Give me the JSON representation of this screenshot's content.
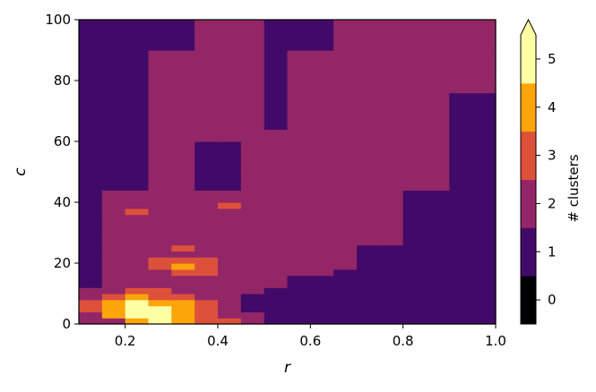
{
  "chart_data": {
    "type": "heatmap",
    "title": "",
    "xlabel": "r",
    "ylabel": "c",
    "xlim": [
      0.1,
      1.0
    ],
    "ylim": [
      0,
      100
    ],
    "xticks": [
      "0.2",
      "0.4",
      "0.6",
      "0.8",
      "1.0"
    ],
    "yticks": [
      "0",
      "20",
      "40",
      "60",
      "80",
      "100"
    ],
    "x_edges": [
      0.1,
      0.15,
      0.2,
      0.25,
      0.3,
      0.35,
      0.4,
      0.45,
      0.5,
      0.55,
      0.6,
      0.65,
      0.7,
      0.75,
      0.8,
      0.85,
      0.9,
      0.95,
      1.0
    ],
    "y_edges": [
      0,
      2,
      4,
      6,
      8,
      10,
      12,
      16,
      18,
      20,
      22,
      24,
      26,
      30,
      34,
      36,
      38,
      40,
      44,
      48,
      52,
      56,
      60,
      64,
      68,
      72,
      76,
      80,
      84,
      88,
      90,
      92,
      96,
      100
    ],
    "z": [
      [
        2,
        2,
        4,
        5,
        4,
        3,
        3,
        2,
        1,
        1,
        1,
        1,
        1,
        1,
        1,
        1,
        1,
        1
      ],
      [
        2,
        4,
        5,
        5,
        4,
        3,
        2,
        2,
        1,
        1,
        1,
        1,
        1,
        1,
        1,
        1,
        1,
        1
      ],
      [
        3,
        4,
        5,
        5,
        4,
        3,
        2,
        1,
        1,
        1,
        1,
        1,
        1,
        1,
        1,
        1,
        1,
        1
      ],
      [
        3,
        4,
        5,
        4,
        4,
        3,
        2,
        1,
        1,
        1,
        1,
        1,
        1,
        1,
        1,
        1,
        1,
        1
      ],
      [
        2,
        3,
        4,
        3,
        3,
        2,
        2,
        1,
        1,
        1,
        1,
        1,
        1,
        1,
        1,
        1,
        1,
        1
      ],
      [
        2,
        2,
        3,
        3,
        2,
        2,
        2,
        2,
        1,
        1,
        1,
        1,
        1,
        1,
        1,
        1,
        1,
        1
      ],
      [
        1,
        2,
        2,
        2,
        2,
        2,
        2,
        2,
        2,
        1,
        1,
        1,
        1,
        1,
        1,
        1,
        1,
        1
      ],
      [
        1,
        2,
        2,
        2,
        3,
        3,
        2,
        2,
        2,
        2,
        2,
        1,
        1,
        1,
        1,
        1,
        1,
        1
      ],
      [
        1,
        2,
        2,
        3,
        4,
        3,
        2,
        2,
        2,
        2,
        2,
        2,
        1,
        1,
        1,
        1,
        1,
        1
      ],
      [
        1,
        2,
        2,
        3,
        3,
        3,
        2,
        2,
        2,
        2,
        2,
        2,
        1,
        1,
        1,
        1,
        1,
        1
      ],
      [
        1,
        2,
        2,
        2,
        2,
        2,
        2,
        2,
        2,
        2,
        2,
        2,
        1,
        1,
        1,
        1,
        1,
        1
      ],
      [
        1,
        2,
        2,
        2,
        3,
        2,
        2,
        2,
        2,
        2,
        2,
        2,
        1,
        1,
        1,
        1,
        1,
        1
      ],
      [
        1,
        2,
        2,
        2,
        2,
        2,
        2,
        2,
        2,
        2,
        2,
        2,
        2,
        2,
        1,
        1,
        1,
        1
      ],
      [
        1,
        2,
        2,
        2,
        2,
        2,
        2,
        2,
        2,
        2,
        2,
        2,
        2,
        2,
        1,
        1,
        1,
        1
      ],
      [
        1,
        2,
        2,
        2,
        2,
        2,
        2,
        2,
        2,
        2,
        2,
        2,
        2,
        2,
        1,
        1,
        1,
        1
      ],
      [
        1,
        2,
        3,
        2,
        2,
        2,
        2,
        2,
        2,
        2,
        2,
        2,
        2,
        2,
        1,
        1,
        1,
        1
      ],
      [
        1,
        2,
        2,
        2,
        2,
        2,
        3,
        2,
        2,
        2,
        2,
        2,
        2,
        2,
        1,
        1,
        1,
        1
      ],
      [
        1,
        2,
        2,
        2,
        2,
        2,
        2,
        2,
        2,
        2,
        2,
        2,
        2,
        2,
        1,
        1,
        1,
        1
      ],
      [
        1,
        1,
        1,
        2,
        2,
        1,
        1,
        2,
        2,
        2,
        2,
        2,
        2,
        2,
        2,
        2,
        1,
        1
      ],
      [
        1,
        1,
        1,
        2,
        2,
        1,
        1,
        2,
        2,
        2,
        2,
        2,
        2,
        2,
        2,
        2,
        1,
        1
      ],
      [
        1,
        1,
        1,
        2,
        2,
        1,
        1,
        2,
        2,
        2,
        2,
        2,
        2,
        2,
        2,
        2,
        1,
        1
      ],
      [
        1,
        1,
        1,
        2,
        2,
        1,
        1,
        2,
        2,
        2,
        2,
        2,
        2,
        2,
        2,
        2,
        1,
        1
      ],
      [
        1,
        1,
        1,
        2,
        2,
        2,
        2,
        2,
        2,
        2,
        2,
        2,
        2,
        2,
        2,
        2,
        1,
        1
      ],
      [
        1,
        1,
        1,
        2,
        2,
        2,
        2,
        2,
        1,
        2,
        2,
        2,
        2,
        2,
        2,
        2,
        1,
        1
      ],
      [
        1,
        1,
        1,
        2,
        2,
        2,
        2,
        2,
        1,
        2,
        2,
        2,
        2,
        2,
        2,
        2,
        1,
        1
      ],
      [
        1,
        1,
        1,
        2,
        2,
        2,
        2,
        2,
        1,
        2,
        2,
        2,
        2,
        2,
        2,
        2,
        1,
        1
      ],
      [
        1,
        1,
        1,
        2,
        2,
        2,
        2,
        2,
        1,
        2,
        2,
        2,
        2,
        2,
        2,
        2,
        2,
        2
      ],
      [
        1,
        1,
        1,
        2,
        2,
        2,
        2,
        2,
        1,
        2,
        2,
        2,
        2,
        2,
        2,
        2,
        2,
        2
      ],
      [
        1,
        1,
        1,
        2,
        2,
        2,
        2,
        2,
        1,
        2,
        2,
        2,
        2,
        2,
        2,
        2,
        2,
        2
      ],
      [
        1,
        1,
        1,
        2,
        2,
        2,
        2,
        2,
        1,
        2,
        2,
        2,
        2,
        2,
        2,
        2,
        2,
        2
      ],
      [
        1,
        1,
        1,
        1,
        1,
        2,
        2,
        2,
        1,
        1,
        1,
        2,
        2,
        2,
        2,
        2,
        2,
        2
      ],
      [
        1,
        1,
        1,
        1,
        1,
        2,
        2,
        2,
        1,
        1,
        1,
        2,
        2,
        2,
        2,
        2,
        2,
        2
      ],
      [
        1,
        1,
        1,
        1,
        1,
        2,
        2,
        2,
        1,
        1,
        1,
        2,
        2,
        2,
        2,
        2,
        2,
        2
      ]
    ],
    "colorbar": {
      "label": "# clusters",
      "levels": [
        {
          "value": 0,
          "label": "0",
          "color": "#000004"
        },
        {
          "value": 1,
          "label": "1",
          "color": "#420a68"
        },
        {
          "value": 2,
          "label": "2",
          "color": "#932667"
        },
        {
          "value": 3,
          "label": "3",
          "color": "#dd513a"
        },
        {
          "value": 4,
          "label": "4",
          "color": "#fca50a"
        },
        {
          "value": 5,
          "label": "5",
          "color": "#fcffa4"
        }
      ],
      "extend": "max"
    },
    "grid": false
  }
}
